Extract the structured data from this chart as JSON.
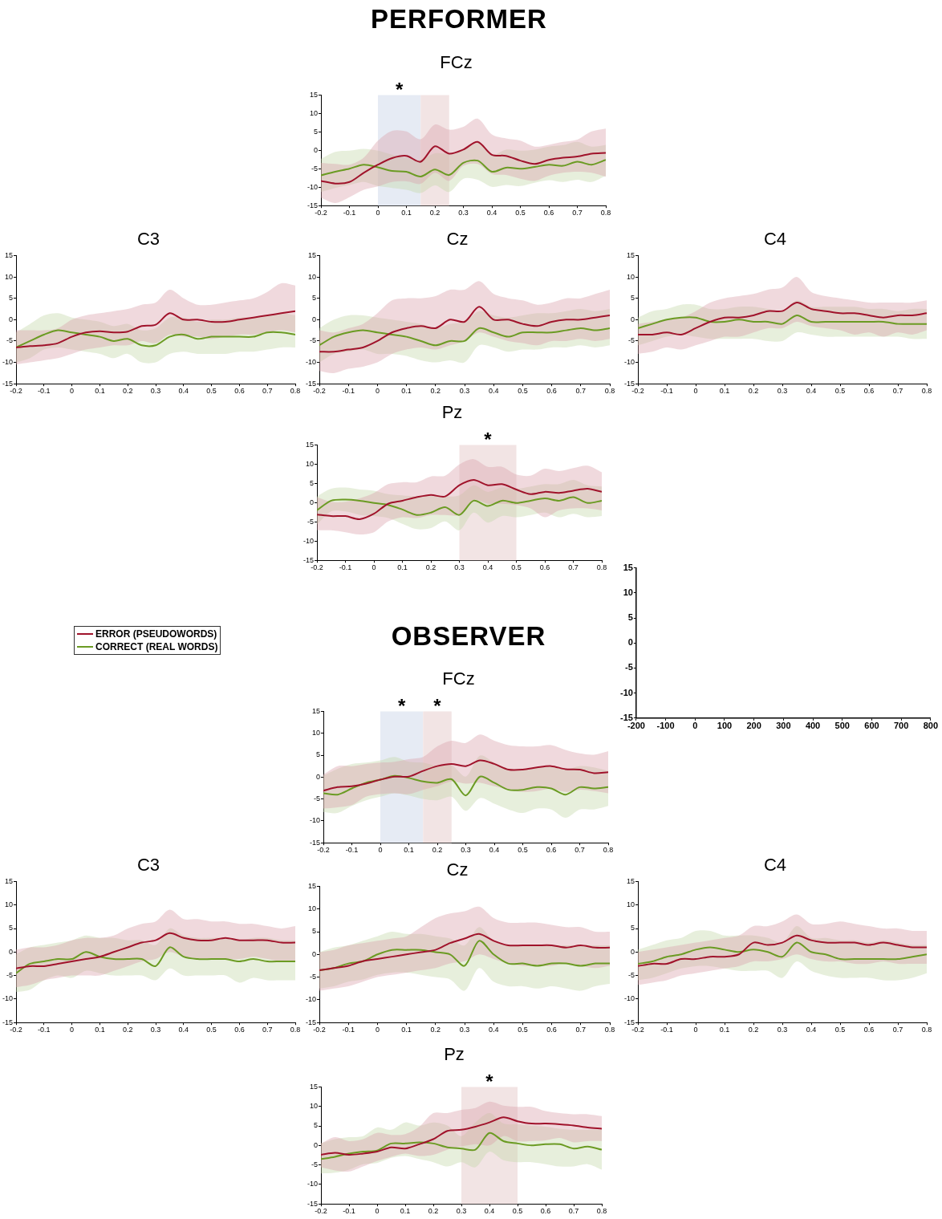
{
  "chart_data": [
    {
      "type": "other",
      "title": "PERFORMER"
    },
    {
      "type": "line",
      "title": "FCz",
      "x": [
        -0.2,
        -0.15,
        -0.1,
        -0.05,
        0,
        0.05,
        0.1,
        0.15,
        0.2,
        0.25,
        0.3,
        0.35,
        0.4,
        0.45,
        0.5,
        0.55,
        0.6,
        0.65,
        0.7,
        0.75,
        0.8
      ],
      "xlim": [
        -0.2,
        0.8
      ],
      "xticks": [
        -0.2,
        -0.1,
        0,
        0.1,
        0.2,
        0.3,
        0.4,
        0.5,
        0.6,
        0.7,
        0.8
      ],
      "ylim": [
        -15,
        15
      ],
      "yticks": [
        -15,
        -10,
        -5,
        0,
        5,
        10,
        15
      ],
      "bands": [
        {
          "axis": "x",
          "from": 0,
          "to": 0.15,
          "label": "*",
          "color": "#e6ebf4"
        },
        {
          "axis": "x",
          "from": 0.15,
          "to": 0.25,
          "color": "#f2e4e4"
        }
      ],
      "series": [
        {
          "color": "#a0132b",
          "values": [
            -8.3,
            -9.0,
            -8.6,
            -6.1,
            -3.9,
            -2.1,
            -1.5,
            -3.1,
            1.1,
            -0.9,
            0.2,
            2.3,
            -1.2,
            -1.5,
            -2.8,
            -3.7,
            -2.6,
            -2.0,
            -1.7,
            -0.9,
            -0.7
          ],
          "lower": [
            -12.9,
            -14.3,
            -12.7,
            -10.7,
            -9.8,
            -8.6,
            -8.4,
            -9.1,
            -6.1,
            -8.3,
            -4.2,
            -3.7,
            -6.4,
            -6.7,
            -7.7,
            -8.3,
            -6.9,
            -6.1,
            -5.8,
            -6.1,
            -7.2
          ],
          "upper": [
            -3.4,
            -3.7,
            -3.9,
            -2.0,
            2.6,
            5.3,
            5.1,
            3.0,
            7.0,
            5.6,
            6.4,
            8.6,
            4.3,
            3.2,
            2.6,
            1.0,
            1.5,
            2.3,
            2.9,
            5.1,
            5.9
          ]
        },
        {
          "color": "#6b9b23",
          "values": [
            -6.8,
            -5.8,
            -5.0,
            -3.9,
            -4.6,
            -5.6,
            -5.8,
            -7.1,
            -5.2,
            -6.7,
            -3.4,
            -2.8,
            -5.8,
            -4.7,
            -5.0,
            -4.5,
            -3.9,
            -4.2,
            -3.1,
            -3.9,
            -2.6
          ],
          "lower": [
            -11.3,
            -10.2,
            -9.4,
            -8.6,
            -9.7,
            -10.2,
            -10.7,
            -11.6,
            -9.5,
            -11.3,
            -7.7,
            -8.0,
            -9.9,
            -9.4,
            -9.7,
            -8.8,
            -8.1,
            -8.6,
            -8.0,
            -8.6,
            -6.9
          ],
          "upper": [
            -2.3,
            -0.4,
            -0.1,
            0.4,
            -0.1,
            -1.2,
            -2.0,
            -2.6,
            -0.8,
            -0.9,
            0.4,
            2.3,
            -1.2,
            0.2,
            -0.1,
            0.2,
            1.0,
            1.4,
            2.3,
            1.0,
            1.5
          ]
        }
      ]
    },
    {
      "type": "line",
      "title": "C3",
      "x": [
        -0.2,
        -0.15,
        -0.1,
        -0.05,
        0,
        0.05,
        0.1,
        0.15,
        0.2,
        0.25,
        0.3,
        0.35,
        0.4,
        0.45,
        0.5,
        0.55,
        0.6,
        0.65,
        0.7,
        0.75,
        0.8
      ],
      "xlim": [
        -0.2,
        0.8
      ],
      "xticks": [
        -0.2,
        -0.1,
        0,
        0.1,
        0.2,
        0.3,
        0.4,
        0.5,
        0.6,
        0.7,
        0.8
      ],
      "ylim": [
        -15,
        15
      ],
      "yticks": [
        -15,
        -10,
        -5,
        0,
        5,
        10,
        15
      ],
      "series": [
        {
          "color": "#a0132b",
          "values": [
            -6.5,
            -6.2,
            -6,
            -5.5,
            -4,
            -3,
            -2.7,
            -3,
            -2.8,
            -1.5,
            -1.2,
            1.5,
            0,
            0,
            -0.5,
            -0.5,
            0,
            0.5,
            1,
            1.5,
            2
          ],
          "lower": [
            -10.5,
            -10,
            -9.5,
            -9,
            -8,
            -7,
            -6.5,
            -6,
            -6,
            -5,
            -5.5,
            -3.5,
            -4,
            -4,
            -4.5,
            -4,
            -3.5,
            -3.5,
            -3,
            -2.5,
            -3
          ],
          "upper": [
            -2.5,
            -2.5,
            -2.5,
            -2,
            0,
            1,
            1.5,
            2,
            2.5,
            3.5,
            4,
            7,
            5,
            3.5,
            3.5,
            4,
            4.5,
            5,
            6.5,
            8.5,
            8
          ]
        },
        {
          "color": "#6b9b23",
          "values": [
            -6.5,
            -5,
            -3.5,
            -2.5,
            -3,
            -3.5,
            -4,
            -5,
            -4.5,
            -6,
            -6,
            -4,
            -3.5,
            -4.5,
            -4,
            -4,
            -4,
            -4,
            -3,
            -3,
            -3.5
          ],
          "lower": [
            -10,
            -9,
            -7,
            -6.5,
            -7,
            -7.5,
            -8,
            -9,
            -8,
            -10,
            -10,
            -8,
            -7.5,
            -8,
            -8,
            -8,
            -7.5,
            -7.5,
            -7,
            -6.5,
            -6.5
          ],
          "upper": [
            -3,
            -1,
            1,
            1.5,
            0.5,
            0,
            -0.5,
            -1.5,
            -1,
            -2.5,
            -2,
            0.5,
            0.5,
            -0.5,
            0,
            0,
            0.5,
            0.5,
            1,
            1.5,
            1
          ]
        }
      ]
    },
    {
      "type": "line",
      "title": "Cz",
      "x": [
        -0.2,
        -0.15,
        -0.1,
        -0.05,
        0,
        0.05,
        0.1,
        0.15,
        0.2,
        0.25,
        0.3,
        0.35,
        0.4,
        0.45,
        0.5,
        0.55,
        0.6,
        0.65,
        0.7,
        0.75,
        0.8
      ],
      "xlim": [
        -0.2,
        0.8
      ],
      "xticks": [
        -0.2,
        -0.1,
        0,
        0.1,
        0.2,
        0.3,
        0.4,
        0.5,
        0.6,
        0.7,
        0.8
      ],
      "ylim": [
        -15,
        15
      ],
      "yticks": [
        -15,
        -10,
        -5,
        0,
        5,
        10,
        15
      ],
      "series": [
        {
          "color": "#a0132b",
          "values": [
            -7.5,
            -7.5,
            -7,
            -6.5,
            -5,
            -3,
            -2,
            -1.5,
            -2,
            0,
            -0.5,
            3,
            0,
            0,
            -1,
            -1.5,
            -0.5,
            0,
            0,
            0.5,
            1
          ],
          "lower": [
            -12,
            -12.5,
            -11.5,
            -11,
            -10,
            -8,
            -7,
            -6.5,
            -7,
            -6,
            -5,
            -3,
            -4,
            -5,
            -5.5,
            -6,
            -5,
            -5,
            -4.5,
            -5,
            -4.5
          ],
          "upper": [
            -2.5,
            -3,
            -2,
            -1,
            1.5,
            4.5,
            5,
            5,
            5.5,
            7,
            7,
            9,
            6,
            5,
            4.5,
            3.5,
            4,
            5,
            5,
            6,
            7
          ]
        },
        {
          "color": "#6b9b23",
          "values": [
            -6,
            -4,
            -3,
            -2.5,
            -3,
            -3.5,
            -4,
            -5,
            -6,
            -5,
            -5,
            -2,
            -3,
            -4,
            -3,
            -3,
            -3,
            -2.5,
            -2,
            -2.5,
            -2
          ],
          "lower": [
            -10,
            -8,
            -7.5,
            -7,
            -8,
            -8,
            -8.5,
            -9.5,
            -10,
            -9.5,
            -10,
            -6,
            -6.5,
            -7.5,
            -7,
            -7,
            -6.5,
            -6.5,
            -6,
            -6.5,
            -6
          ],
          "upper": [
            -2,
            0,
            1,
            1,
            0.5,
            0,
            -0.5,
            -1,
            -2,
            -1,
            -0.5,
            2,
            1,
            0.5,
            1,
            1.5,
            1.5,
            2,
            2.5,
            2,
            2.5
          ]
        }
      ]
    },
    {
      "type": "line",
      "title": "C4",
      "x": [
        -0.2,
        -0.15,
        -0.1,
        -0.05,
        0,
        0.05,
        0.1,
        0.15,
        0.2,
        0.25,
        0.3,
        0.35,
        0.4,
        0.45,
        0.5,
        0.55,
        0.6,
        0.65,
        0.7,
        0.75,
        0.8
      ],
      "xlim": [
        -0.2,
        0.8
      ],
      "xticks": [
        -0.2,
        -0.1,
        0,
        0.1,
        0.2,
        0.3,
        0.4,
        0.5,
        0.6,
        0.7,
        0.8
      ],
      "ylim": [
        -15,
        15
      ],
      "yticks": [
        -15,
        -10,
        -5,
        0,
        5,
        10,
        15
      ],
      "series": [
        {
          "color": "#a0132b",
          "values": [
            -3.5,
            -3.5,
            -3,
            -3.5,
            -2,
            -0.5,
            0.5,
            0.5,
            1,
            2,
            2,
            4,
            2.5,
            2,
            1.5,
            1.5,
            1,
            0.5,
            1,
            1,
            1.5
          ],
          "lower": [
            -8,
            -7.5,
            -6.5,
            -7,
            -6,
            -5,
            -4,
            -4,
            -3,
            -2,
            -2,
            -0.5,
            -1.5,
            -2,
            -2.5,
            -3.5,
            -3,
            -4,
            -3,
            -3.5,
            -2.5
          ],
          "upper": [
            -1,
            -0.5,
            0,
            0.5,
            2,
            4,
            5,
            5.5,
            6,
            7,
            7.5,
            10,
            6.5,
            5.5,
            5,
            4.5,
            4,
            4,
            4,
            4,
            4.5
          ]
        },
        {
          "color": "#6b9b23",
          "values": [
            -2,
            -1,
            0,
            0.5,
            0.5,
            -0.5,
            -0.5,
            0,
            -0.5,
            -0.5,
            -1,
            1,
            -0.5,
            -0.5,
            -0.5,
            -0.5,
            -0.5,
            -0.5,
            -1,
            -1,
            -1
          ],
          "lower": [
            -6,
            -5,
            -4,
            -3.5,
            -4,
            -4.5,
            -4.5,
            -4.5,
            -4.5,
            -5,
            -5,
            -3,
            -3.5,
            -4,
            -4,
            -4,
            -4,
            -4,
            -4,
            -4.5,
            -4.5
          ],
          "upper": [
            0.5,
            2,
            2.5,
            3.5,
            3.5,
            2.5,
            2.5,
            3,
            3,
            2.5,
            2,
            4.5,
            3,
            3,
            3,
            3,
            2.5,
            2.5,
            2,
            2.5,
            2.5
          ]
        }
      ]
    },
    {
      "type": "line",
      "title": "Pz",
      "x": [
        -0.2,
        -0.15,
        -0.1,
        -0.05,
        0,
        0.05,
        0.1,
        0.15,
        0.2,
        0.25,
        0.3,
        0.35,
        0.4,
        0.45,
        0.5,
        0.55,
        0.6,
        0.65,
        0.7,
        0.75,
        0.8
      ],
      "xlim": [
        -0.2,
        0.8
      ],
      "xticks": [
        -0.2,
        -0.1,
        0,
        0.1,
        0.2,
        0.3,
        0.4,
        0.5,
        0.6,
        0.7,
        0.8
      ],
      "ylim": [
        -15,
        15
      ],
      "yticks": [
        -15,
        -10,
        -5,
        0,
        5,
        10,
        15
      ],
      "bands": [
        {
          "axis": "x",
          "from": 0.3,
          "to": 0.5,
          "label": "*",
          "color": "#f2e4e4"
        }
      ],
      "series": [
        {
          "color": "#a0132b",
          "values": [
            -3.1,
            -3.5,
            -3.5,
            -4.3,
            -2.9,
            -0.3,
            0.5,
            1.4,
            2.0,
            1.6,
            4.5,
            5.9,
            4.5,
            4.8,
            3.4,
            2.2,
            2.8,
            2.5,
            3.1,
            3.6,
            2.8
          ],
          "lower": [
            -7.2,
            -7.2,
            -7.7,
            -8.3,
            -7.7,
            -4.9,
            -3.8,
            -4.0,
            -3.2,
            -3.2,
            -3.2,
            0.7,
            -0.3,
            -0.3,
            -0.6,
            -1.5,
            -3.8,
            -2.0,
            -1.5,
            -1.5,
            -2.0
          ],
          "upper": [
            1.4,
            0.2,
            0.2,
            1.1,
            2.5,
            4.8,
            5.3,
            5.3,
            6.8,
            7.0,
            9.9,
            11.3,
            9.3,
            9.3,
            7.3,
            7.0,
            8.8,
            8.2,
            9.0,
            9.6,
            7.9
          ]
        },
        {
          "color": "#6b9b23",
          "values": [
            -2.0,
            0.5,
            0.8,
            0.5,
            -0.1,
            -0.6,
            -1.8,
            -3.2,
            -2.6,
            -1.2,
            -3.2,
            0.5,
            -0.9,
            0.5,
            -0.1,
            0.5,
            1.1,
            0.5,
            1.4,
            -0.1,
            0.5
          ],
          "lower": [
            -5.7,
            -2.3,
            -2.3,
            -3.2,
            -3.5,
            -4.0,
            -5.5,
            -6.9,
            -6.6,
            -4.9,
            -7.2,
            -2.6,
            -5.2,
            -3.5,
            -3.8,
            -3.2,
            -2.6,
            -3.8,
            -2.9,
            -3.8,
            -3.5
          ],
          "upper": [
            1.6,
            3.6,
            3.9,
            3.4,
            3.1,
            2.2,
            1.9,
            1.6,
            1.9,
            1.6,
            1.9,
            4.5,
            2.8,
            3.9,
            3.6,
            4.2,
            4.8,
            4.8,
            5.9,
            4.5,
            4.2
          ]
        }
      ]
    },
    {
      "type": "other",
      "title": "OBSERVER"
    },
    {
      "type": "line",
      "title": "FCz",
      "legend": "top left",
      "x": [
        -0.2,
        -0.15,
        -0.1,
        -0.05,
        0,
        0.05,
        0.1,
        0.15,
        0.2,
        0.25,
        0.3,
        0.35,
        0.4,
        0.45,
        0.5,
        0.55,
        0.6,
        0.65,
        0.7,
        0.75,
        0.8
      ],
      "xlim": [
        -0.2,
        0.8
      ],
      "xticks": [
        -0.2,
        -0.1,
        0,
        0.1,
        0.2,
        0.3,
        0.4,
        0.5,
        0.6,
        0.7,
        0.8
      ],
      "ylim": [
        -15,
        15
      ],
      "yticks": [
        -15,
        -10,
        -5,
        0,
        5,
        10,
        15
      ],
      "bands": [
        {
          "axis": "x",
          "from": 0,
          "to": 0.15,
          "label": "*",
          "color": "#e6ebf4"
        },
        {
          "axis": "x",
          "from": 0.15,
          "to": 0.25,
          "label": "*",
          "color": "#f2e4e4"
        }
      ],
      "series": [
        {
          "name": "ERROR (PSEUDOWORDS)",
          "color": "#a0132b",
          "values": [
            -3.1,
            -2.3,
            -2.1,
            -1.5,
            -0.6,
            0.1,
            0.1,
            1.4,
            2.5,
            3.0,
            2.5,
            3.8,
            3.0,
            1.7,
            1.7,
            2.2,
            2.5,
            1.8,
            1.7,
            0.9,
            1.1
          ],
          "lower": [
            -7.2,
            -6.9,
            -6.4,
            -4.5,
            -3.9,
            -3.7,
            -3.9,
            -2.9,
            -2.1,
            -1.0,
            -1.5,
            -1.3,
            -2.1,
            -2.9,
            -3.4,
            -3.2,
            -2.6,
            -3.4,
            -2.9,
            -3.2,
            -3.7
          ],
          "upper": [
            0.6,
            2.5,
            2.5,
            3.0,
            3.3,
            3.5,
            4.1,
            4.6,
            7.0,
            8.3,
            7.8,
            9.7,
            8.3,
            7.3,
            7.0,
            7.0,
            7.3,
            6.2,
            5.4,
            5.1,
            5.9
          ]
        },
        {
          "name": "CORRECT (REAL WORDS)",
          "color": "#6b9b23",
          "values": [
            -3.7,
            -4.0,
            -2.6,
            -1.3,
            -0.6,
            0.3,
            -0.2,
            -1.0,
            -1.3,
            -0.5,
            -4.2,
            0.1,
            -1.3,
            -2.9,
            -2.9,
            -2.3,
            -2.6,
            -4.0,
            -2.3,
            -2.6,
            -2.3
          ],
          "lower": [
            -8.0,
            -8.2,
            -6.6,
            -5.3,
            -4.5,
            -3.7,
            -4.2,
            -5.0,
            -5.3,
            -4.5,
            -7.7,
            -4.8,
            -6.1,
            -7.4,
            -8.2,
            -7.2,
            -7.4,
            -9.3,
            -7.4,
            -7.4,
            -6.6
          ],
          "upper": [
            0.3,
            1.9,
            3.0,
            3.3,
            3.8,
            4.6,
            3.5,
            3.3,
            2.5,
            2.7,
            0.1,
            4.9,
            3.3,
            1.9,
            1.7,
            2.2,
            2.5,
            1.7,
            2.5,
            2.2,
            1.4
          ]
        }
      ]
    },
    {
      "type": "line",
      "title": "C3",
      "x": [
        -0.2,
        -0.15,
        -0.1,
        -0.05,
        0,
        0.05,
        0.1,
        0.15,
        0.2,
        0.25,
        0.3,
        0.35,
        0.4,
        0.45,
        0.5,
        0.55,
        0.6,
        0.65,
        0.7,
        0.75,
        0.8
      ],
      "xlim": [
        -0.2,
        0.8
      ],
      "xticks": [
        -0.2,
        -0.1,
        0,
        0.1,
        0.2,
        0.3,
        0.4,
        0.5,
        0.6,
        0.7,
        0.8
      ],
      "ylim": [
        -15,
        15
      ],
      "yticks": [
        -15,
        -10,
        -5,
        0,
        5,
        10,
        15
      ],
      "series": [
        {
          "color": "#a0132b",
          "values": [
            -3.5,
            -3,
            -3,
            -2.5,
            -2,
            -1.5,
            -1,
            0,
            1,
            2,
            2.5,
            4,
            3,
            2.5,
            2.5,
            3,
            2.5,
            2.5,
            2.5,
            2,
            2
          ],
          "lower": [
            -7.5,
            -7,
            -6,
            -5.5,
            -5,
            -5,
            -5,
            -4,
            -3,
            -2,
            -1.5,
            0,
            -1,
            -1.5,
            -1.5,
            -1.5,
            -1.5,
            -1,
            -1.5,
            -2,
            -2
          ],
          "upper": [
            0.5,
            1,
            1,
            1.5,
            2.5,
            3,
            3,
            3.5,
            5,
            6,
            6.5,
            9,
            7,
            7,
            6.5,
            6.5,
            6,
            6,
            5.5,
            5,
            5.5
          ]
        },
        {
          "color": "#6b9b23",
          "values": [
            -4.5,
            -2.5,
            -2,
            -1.5,
            -1.5,
            0,
            -1,
            -1.5,
            -1.5,
            -1.5,
            -3,
            1,
            -1,
            -1.5,
            -1.5,
            -1.5,
            -2,
            -1.5,
            -2,
            -2,
            -2
          ],
          "lower": [
            -8.5,
            -8,
            -6,
            -5,
            -5.5,
            -4,
            -4.5,
            -5,
            -5,
            -5,
            -6,
            -3.5,
            -5,
            -5,
            -5,
            -5,
            -6.5,
            -5.5,
            -6,
            -6,
            -6
          ],
          "upper": [
            -0.5,
            1,
            1.5,
            2,
            2.5,
            3.5,
            3,
            3,
            2.5,
            2.5,
            1.5,
            5,
            3.5,
            3,
            3,
            3,
            2.5,
            3,
            3,
            2.5,
            2.5
          ]
        }
      ]
    },
    {
      "type": "line",
      "title": "Cz",
      "x": [
        -0.2,
        -0.15,
        -0.1,
        -0.05,
        0,
        0.05,
        0.1,
        0.15,
        0.2,
        0.25,
        0.3,
        0.35,
        0.4,
        0.45,
        0.5,
        0.55,
        0.6,
        0.65,
        0.7,
        0.75,
        0.8
      ],
      "xlim": [
        -0.2,
        0.8
      ],
      "xticks": [
        -0.2,
        -0.1,
        0,
        0.1,
        0.2,
        0.3,
        0.4,
        0.5,
        0.6,
        0.7,
        0.8
      ],
      "ylim": [
        -15,
        15
      ],
      "yticks": [
        -15,
        -10,
        -5,
        0,
        5,
        10,
        15
      ],
      "series": [
        {
          "color": "#a0132b",
          "values": [
            -3.5,
            -3,
            -2.5,
            -1.5,
            -1,
            -0.5,
            0,
            0.5,
            1,
            2.5,
            3.5,
            4.5,
            3,
            2,
            2,
            2,
            2,
            1.5,
            2,
            1.5,
            1.5
          ],
          "lower": [
            -8,
            -7.5,
            -7,
            -6,
            -5,
            -4.5,
            -4,
            -3.5,
            -3,
            -2,
            -1.5,
            0,
            -1,
            -2,
            -2.5,
            -2.5,
            -2.5,
            -2,
            -2.5,
            -3,
            -2.5
          ],
          "upper": [
            0.5,
            1,
            2,
            2.5,
            3,
            3.5,
            4,
            6,
            8,
            9,
            9.5,
            10.5,
            8,
            7,
            7,
            7,
            6.5,
            6,
            6,
            5,
            5
          ]
        },
        {
          "color": "#6b9b23",
          "values": [
            -3.5,
            -3,
            -2,
            -1.5,
            0,
            1,
            1,
            1,
            0.5,
            0,
            -2.5,
            3,
            0,
            -2,
            -2,
            -2.5,
            -2,
            -2,
            -2.5,
            -2,
            -2
          ],
          "lower": [
            -7.5,
            -7,
            -6,
            -5.5,
            -4.5,
            -4,
            -4,
            -4.5,
            -5,
            -5.5,
            -8,
            -3,
            -6,
            -7,
            -7,
            -7.5,
            -7,
            -7.5,
            -8,
            -7,
            -6.5
          ],
          "upper": [
            0.5,
            1.5,
            2,
            3,
            4,
            5,
            4.5,
            4.5,
            4,
            3.5,
            2,
            6,
            3,
            2,
            2,
            2,
            2,
            2,
            2,
            2,
            2
          ]
        }
      ]
    },
    {
      "type": "line",
      "title": "C4",
      "x": [
        -0.2,
        -0.15,
        -0.1,
        -0.05,
        0,
        0.05,
        0.1,
        0.15,
        0.2,
        0.25,
        0.3,
        0.35,
        0.4,
        0.45,
        0.5,
        0.55,
        0.6,
        0.65,
        0.7,
        0.75,
        0.8
      ],
      "xlim": [
        -0.2,
        0.8
      ],
      "xticks": [
        -0.2,
        -0.1,
        0,
        0.1,
        0.2,
        0.3,
        0.4,
        0.5,
        0.6,
        0.7,
        0.8
      ],
      "ylim": [
        -15,
        15
      ],
      "yticks": [
        -15,
        -10,
        -5,
        0,
        5,
        10,
        15
      ],
      "series": [
        {
          "color": "#a0132b",
          "values": [
            -3,
            -2.5,
            -2.5,
            -1.5,
            -1.5,
            -1,
            -1,
            -0.5,
            2,
            1.5,
            2,
            3.5,
            2.5,
            2,
            2,
            2,
            1.5,
            2,
            1.5,
            1,
            1
          ],
          "lower": [
            -7,
            -6.5,
            -6,
            -5,
            -4.5,
            -4,
            -3.5,
            -3,
            -2,
            -2,
            -1.5,
            -0.5,
            -1.5,
            -2,
            -2,
            -2.5,
            -2.5,
            -2,
            -2.5,
            -2.5,
            -2.5
          ],
          "upper": [
            0,
            0.5,
            1,
            1.5,
            2,
            2.5,
            3,
            3.5,
            5.5,
            5.5,
            6.5,
            8,
            6,
            6,
            6.5,
            6,
            5.5,
            5,
            5,
            4.5,
            4.5
          ]
        },
        {
          "color": "#6b9b23",
          "values": [
            -2.5,
            -2,
            -1,
            -0.5,
            0.5,
            1,
            0.5,
            0,
            0.5,
            0,
            -1,
            2,
            0,
            -0.5,
            -1.5,
            -1.5,
            -1.5,
            -1.5,
            -1.5,
            -1,
            -0.5
          ],
          "lower": [
            -6,
            -5.5,
            -4.5,
            -3.5,
            -3,
            -3,
            -3.5,
            -4,
            -4,
            -4,
            -5.5,
            -2,
            -4,
            -5,
            -5.5,
            -5.5,
            -5.5,
            -6,
            -6,
            -5.5,
            -4.5
          ],
          "upper": [
            0.5,
            1.5,
            2.5,
            3,
            4.5,
            4.5,
            3.5,
            3.5,
            3.5,
            3,
            2,
            5.5,
            3,
            3,
            2.5,
            2.5,
            2,
            2.5,
            2,
            1.5,
            1.5
          ]
        }
      ]
    },
    {
      "type": "line",
      "title": "Pz",
      "x": [
        -0.2,
        -0.15,
        -0.1,
        -0.05,
        0,
        0.05,
        0.1,
        0.15,
        0.2,
        0.25,
        0.3,
        0.35,
        0.4,
        0.45,
        0.5,
        0.55,
        0.6,
        0.65,
        0.7,
        0.75,
        0.8
      ],
      "xlim": [
        -0.2,
        0.8
      ],
      "xticks": [
        -0.2,
        -0.1,
        0,
        0.1,
        0.2,
        0.3,
        0.4,
        0.5,
        0.6,
        0.7,
        0.8
      ],
      "ylim": [
        -15,
        15
      ],
      "yticks": [
        -15,
        -10,
        -5,
        0,
        5,
        10,
        15
      ],
      "bands": [
        {
          "axis": "x",
          "from": 0.3,
          "to": 0.5,
          "label": "*",
          "color": "#f2e4e4"
        }
      ],
      "series": [
        {
          "color": "#a0132b",
          "values": [
            -2.4,
            -1.9,
            -2.4,
            -2.1,
            -1.6,
            -0.5,
            -0.8,
            0.3,
            1.6,
            3.7,
            4.0,
            4.8,
            5.9,
            7.2,
            6.2,
            5.6,
            5.6,
            5.4,
            5.1,
            4.6,
            4.3
          ],
          "lower": [
            -5.6,
            -6.4,
            -6.7,
            -5.4,
            -4.0,
            -2.9,
            -2.1,
            -2.7,
            -2.4,
            -1.1,
            -0.3,
            0.3,
            0,
            2.4,
            1.1,
            1.1,
            1.3,
            1.9,
            0.8,
            1.1,
            1.1
          ],
          "upper": [
            0.5,
            2.1,
            1.1,
            1.6,
            3.2,
            2.7,
            2.9,
            4.8,
            8.3,
            8.3,
            9.1,
            9.6,
            11.2,
            10.2,
            9.9,
            9.9,
            8.8,
            8.3,
            8.0,
            8.0,
            7.5
          ]
        },
        {
          "color": "#6b9b23",
          "values": [
            -3.5,
            -2.9,
            -2.1,
            -1.6,
            -1.3,
            0.5,
            0.5,
            0.8,
            0.5,
            -0.5,
            -0.8,
            -1.1,
            3.2,
            1.1,
            0.5,
            0,
            0.3,
            0.3,
            -0.8,
            -0.3,
            -1.1
          ],
          "lower": [
            -7.2,
            -7.0,
            -6.2,
            -4.8,
            -4.5,
            -3.2,
            -2.7,
            -3.5,
            -4.3,
            -5.4,
            -4.3,
            -5.6,
            -1.6,
            -3.8,
            -4.3,
            -4.3,
            -4.8,
            -5.4,
            -5.4,
            -4.8,
            -6.2
          ],
          "upper": [
            0.5,
            1.6,
            2.1,
            2.4,
            4.6,
            4.0,
            5.9,
            5.1,
            5.9,
            5.1,
            2.4,
            5.9,
            8.3,
            5.6,
            5.4,
            5.1,
            4.8,
            4.3,
            4.0,
            4.0,
            4.0
          ]
        }
      ]
    },
    {
      "type": "line",
      "xlim": [
        -200,
        800
      ],
      "xticks": [
        -200,
        -100,
        0,
        100,
        200,
        300,
        400,
        500,
        600,
        700,
        800
      ],
      "ylim": [
        -15,
        15
      ],
      "yticks": [
        -15,
        -10,
        -5,
        0,
        5,
        10,
        15
      ]
    }
  ]
}
